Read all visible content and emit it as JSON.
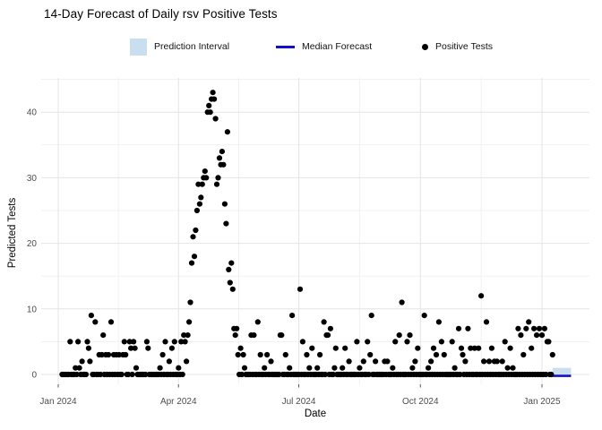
{
  "chart": {
    "title": "14-Day Forecast of Daily rsv Positive Tests",
    "xlabel": "Date",
    "ylabel": "Predicted Tests",
    "legend": [
      {
        "label": "Prediction Interval",
        "type": "band",
        "color": "#C9DFF0"
      },
      {
        "label": "Median Forecast",
        "type": "line",
        "color": "#1111CC"
      },
      {
        "label": "Positive Tests",
        "type": "point",
        "color": "#000000"
      }
    ]
  },
  "chart_data": {
    "type": "scatter",
    "title": "14-Day Forecast of Daily rsv Positive Tests",
    "xlabel": "Date",
    "ylabel": "Predicted Tests",
    "x_epoch": "2024-01-01",
    "x_domain": [
      "2024-01-01",
      "2025-01-23"
    ],
    "ylim": [
      0,
      43
    ],
    "grid": true,
    "legend_position": "top",
    "x_ticks": [
      {
        "day": 0,
        "label": "Jan 2024"
      },
      {
        "day": 91,
        "label": "Apr 2024"
      },
      {
        "day": 182,
        "label": "Jul 2024"
      },
      {
        "day": 274,
        "label": "Oct 2024"
      },
      {
        "day": 366,
        "label": "Jan 2025"
      }
    ],
    "x_minor_days": [
      45.5,
      136.5,
      228,
      320
    ],
    "y_ticks": [
      0,
      10,
      20,
      30,
      40
    ],
    "y_minor": [
      5,
      15,
      25,
      35,
      45
    ],
    "observations": {
      "note": "daily positive tests; days are offsets from 2024-01-01; all days from start_day to end_day not listed in nonzero_points have value 0",
      "start_day": 3,
      "end_day": 374,
      "default_value": 0,
      "nonzero_points": [
        [
          9,
          5
        ],
        [
          13,
          1
        ],
        [
          15,
          5
        ],
        [
          16,
          1
        ],
        [
          18,
          2
        ],
        [
          22,
          5
        ],
        [
          23,
          4
        ],
        [
          24,
          2
        ],
        [
          25,
          9
        ],
        [
          28,
          8
        ],
        [
          31,
          3
        ],
        [
          33,
          3
        ],
        [
          34,
          6
        ],
        [
          36,
          3
        ],
        [
          38,
          3
        ],
        [
          40,
          8
        ],
        [
          42,
          3
        ],
        [
          44,
          3
        ],
        [
          46,
          3
        ],
        [
          49,
          3
        ],
        [
          50,
          5
        ],
        [
          51,
          3
        ],
        [
          54,
          5
        ],
        [
          55,
          4
        ],
        [
          57,
          5
        ],
        [
          58,
          4
        ],
        [
          59,
          1
        ],
        [
          67,
          5
        ],
        [
          68,
          4
        ],
        [
          77,
          1
        ],
        [
          79,
          3
        ],
        [
          81,
          5
        ],
        [
          84,
          2
        ],
        [
          86,
          4
        ],
        [
          88,
          5
        ],
        [
          91,
          1
        ],
        [
          93,
          5
        ],
        [
          95,
          6
        ],
        [
          96,
          5
        ],
        [
          97,
          2
        ],
        [
          98,
          6
        ],
        [
          99,
          8
        ],
        [
          100,
          11
        ],
        [
          101,
          17
        ],
        [
          102,
          21
        ],
        [
          103,
          18
        ],
        [
          104,
          22
        ],
        [
          105,
          25
        ],
        [
          106,
          29
        ],
        [
          107,
          26
        ],
        [
          108,
          27
        ],
        [
          109,
          29
        ],
        [
          110,
          30
        ],
        [
          111,
          31
        ],
        [
          112,
          30
        ],
        [
          113,
          40
        ],
        [
          114,
          41
        ],
        [
          115,
          40
        ],
        [
          116,
          42
        ],
        [
          117,
          43
        ],
        [
          118,
          42
        ],
        [
          119,
          39
        ],
        [
          120,
          29
        ],
        [
          121,
          30
        ],
        [
          122,
          33
        ],
        [
          123,
          32
        ],
        [
          124,
          34
        ],
        [
          125,
          32
        ],
        [
          126,
          26
        ],
        [
          127,
          23
        ],
        [
          128,
          37
        ],
        [
          129,
          16
        ],
        [
          130,
          14
        ],
        [
          131,
          17
        ],
        [
          132,
          13
        ],
        [
          133,
          7
        ],
        [
          134,
          6
        ],
        [
          135,
          7
        ],
        [
          136,
          3
        ],
        [
          138,
          4
        ],
        [
          140,
          3
        ],
        [
          141,
          1
        ],
        [
          146,
          6
        ],
        [
          148,
          6
        ],
        [
          151,
          8
        ],
        [
          153,
          3
        ],
        [
          156,
          1
        ],
        [
          158,
          3
        ],
        [
          161,
          2
        ],
        [
          168,
          6
        ],
        [
          169,
          6
        ],
        [
          172,
          3
        ],
        [
          175,
          1
        ],
        [
          177,
          9
        ],
        [
          183,
          13
        ],
        [
          185,
          5
        ],
        [
          188,
          3
        ],
        [
          190,
          1
        ],
        [
          192,
          4
        ],
        [
          196,
          1
        ],
        [
          198,
          3
        ],
        [
          201,
          8
        ],
        [
          203,
          6
        ],
        [
          204,
          6
        ],
        [
          206,
          7
        ],
        [
          209,
          1
        ],
        [
          210,
          4
        ],
        [
          215,
          1
        ],
        [
          217,
          4
        ],
        [
          220,
          2
        ],
        [
          226,
          5
        ],
        [
          228,
          1
        ],
        [
          231,
          2
        ],
        [
          234,
          5
        ],
        [
          236,
          3
        ],
        [
          237,
          9
        ],
        [
          240,
          2
        ],
        [
          247,
          2
        ],
        [
          249,
          2
        ],
        [
          253,
          1
        ],
        [
          255,
          5
        ],
        [
          258,
          6
        ],
        [
          260,
          11
        ],
        [
          264,
          5
        ],
        [
          266,
          6
        ],
        [
          268,
          1
        ],
        [
          270,
          2
        ],
        [
          272,
          4
        ],
        [
          277,
          9
        ],
        [
          280,
          1
        ],
        [
          282,
          2
        ],
        [
          284,
          4
        ],
        [
          286,
          3
        ],
        [
          288,
          8
        ],
        [
          290,
          5
        ],
        [
          292,
          3
        ],
        [
          298,
          5
        ],
        [
          300,
          1
        ],
        [
          303,
          7
        ],
        [
          305,
          4
        ],
        [
          306,
          3
        ],
        [
          308,
          2
        ],
        [
          310,
          7
        ],
        [
          312,
          4
        ],
        [
          315,
          4
        ],
        [
          318,
          4
        ],
        [
          320,
          12
        ],
        [
          322,
          2
        ],
        [
          324,
          8
        ],
        [
          326,
          2
        ],
        [
          328,
          4
        ],
        [
          330,
          2
        ],
        [
          332,
          2
        ],
        [
          336,
          2
        ],
        [
          338,
          5
        ],
        [
          340,
          1
        ],
        [
          342,
          4
        ],
        [
          344,
          1
        ],
        [
          348,
          7
        ],
        [
          350,
          6
        ],
        [
          352,
          3
        ],
        [
          354,
          7
        ],
        [
          356,
          8
        ],
        [
          358,
          4
        ],
        [
          360,
          7
        ],
        [
          362,
          6
        ],
        [
          364,
          7
        ],
        [
          366,
          6
        ],
        [
          368,
          7
        ],
        [
          370,
          5
        ],
        [
          371,
          5
        ],
        [
          374,
          3
        ]
      ]
    },
    "forecast": {
      "start_day": 374,
      "end_day": 388,
      "median": 0,
      "interval": [
        0,
        1
      ]
    },
    "colors": {
      "point": "#000000",
      "band": "#C9DFF0",
      "median": "#1111CC",
      "grid_major": "#E4E4E4",
      "grid_minor": "#F1F1F1",
      "tick_text": "#4D4D4D"
    }
  }
}
